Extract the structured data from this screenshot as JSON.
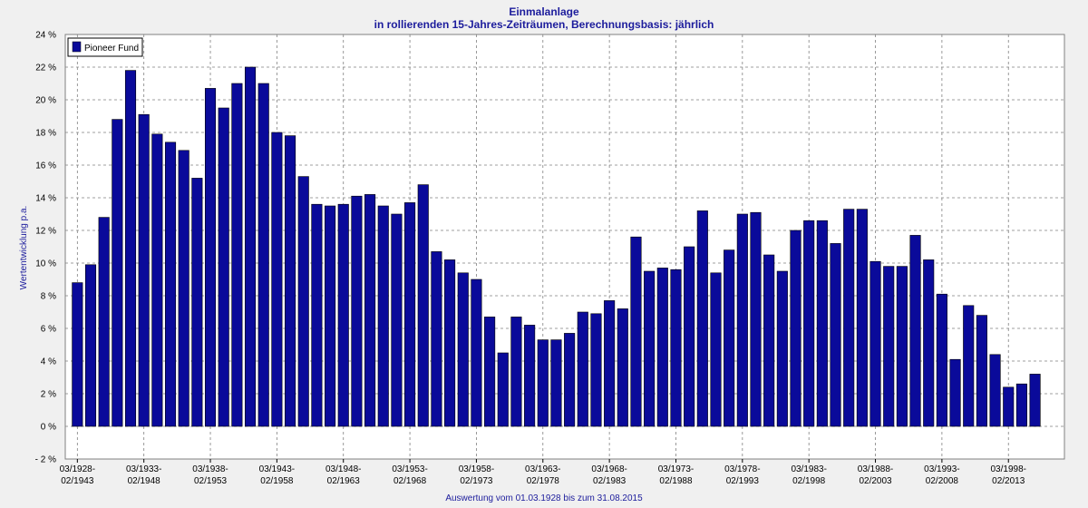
{
  "chart_data": {
    "type": "bar",
    "title": "Einmalanlage",
    "subtitle": "in rollierenden 15-Jahres-Zeiträumen, Berechnungsbasis: jährlich",
    "ylabel": "Wertentwicklung p.a.",
    "footer": "Auswertung vom 01.03.1928 bis zum 31.08.2015",
    "ylim": [
      -2,
      24
    ],
    "yticks": [
      -2,
      0,
      2,
      4,
      6,
      8,
      10,
      12,
      14,
      16,
      18,
      20,
      22,
      24
    ],
    "ytick_labels": [
      "- 2 %",
      "0 %",
      "2 %",
      "4 %",
      "6 %",
      "8 %",
      "10 %",
      "12 %",
      "14 %",
      "16 %",
      "18 %",
      "20 %",
      "22 %",
      "24 %"
    ],
    "grid": true,
    "legend_position": "top-left",
    "bar_color": "#0a0a9a",
    "categories": [
      "03/1928-02/1943",
      "03/1929-02/1944",
      "03/1930-02/1945",
      "03/1931-02/1946",
      "03/1932-02/1947",
      "03/1933-02/1948",
      "03/1934-02/1949",
      "03/1935-02/1950",
      "03/1936-02/1951",
      "03/1937-02/1952",
      "03/1938-02/1953",
      "03/1939-02/1954",
      "03/1940-02/1955",
      "03/1941-02/1956",
      "03/1942-02/1957",
      "03/1943-02/1958",
      "03/1944-02/1959",
      "03/1945-02/1960",
      "03/1946-02/1961",
      "03/1947-02/1962",
      "03/1948-02/1963",
      "03/1949-02/1964",
      "03/1950-02/1965",
      "03/1951-02/1966",
      "03/1952-02/1967",
      "03/1953-02/1968",
      "03/1954-02/1969",
      "03/1955-02/1970",
      "03/1956-02/1971",
      "03/1957-02/1972",
      "03/1958-02/1973",
      "03/1959-02/1974",
      "03/1960-02/1975",
      "03/1961-02/1976",
      "03/1962-02/1977",
      "03/1963-02/1978",
      "03/1964-02/1979",
      "03/1965-02/1980",
      "03/1966-02/1981",
      "03/1967-02/1982",
      "03/1968-02/1983",
      "03/1969-02/1984",
      "03/1970-02/1985",
      "03/1971-02/1986",
      "03/1972-02/1987",
      "03/1973-02/1988",
      "03/1974-02/1989",
      "03/1975-02/1990",
      "03/1976-02/1991",
      "03/1977-02/1992",
      "03/1978-02/1993",
      "03/1979-02/1994",
      "03/1980-02/1995",
      "03/1981-02/1996",
      "03/1982-02/1997",
      "03/1983-02/1998",
      "03/1984-02/1999",
      "03/1985-02/2000",
      "03/1986-02/2001",
      "03/1987-02/2002",
      "03/1988-02/2003",
      "03/1989-02/2004",
      "03/1990-02/2005",
      "03/1991-02/2006",
      "03/1992-02/2007",
      "03/1993-02/2008",
      "03/1994-02/2009",
      "03/1995-02/2010",
      "03/1996-02/2011",
      "03/1997-02/2012",
      "03/1998-02/2013",
      "03/1999-02/2014",
      "03/2000-02/2015"
    ],
    "x_tick_labels": [
      {
        "index": 0,
        "line1": "03/1928-",
        "line2": "02/1943"
      },
      {
        "index": 5,
        "line1": "03/1933-",
        "line2": "02/1948"
      },
      {
        "index": 10,
        "line1": "03/1938-",
        "line2": "02/1953"
      },
      {
        "index": 15,
        "line1": "03/1943-",
        "line2": "02/1958"
      },
      {
        "index": 20,
        "line1": "03/1948-",
        "line2": "02/1963"
      },
      {
        "index": 25,
        "line1": "03/1953-",
        "line2": "02/1968"
      },
      {
        "index": 30,
        "line1": "03/1958-",
        "line2": "02/1973"
      },
      {
        "index": 35,
        "line1": "03/1963-",
        "line2": "02/1978"
      },
      {
        "index": 40,
        "line1": "03/1968-",
        "line2": "02/1983"
      },
      {
        "index": 45,
        "line1": "03/1973-",
        "line2": "02/1988"
      },
      {
        "index": 50,
        "line1": "03/1978-",
        "line2": "02/1993"
      },
      {
        "index": 55,
        "line1": "03/1983-",
        "line2": "02/1998"
      },
      {
        "index": 60,
        "line1": "03/1988-",
        "line2": "02/2003"
      },
      {
        "index": 65,
        "line1": "03/1993-",
        "line2": "02/2008"
      },
      {
        "index": 70,
        "line1": "03/1998-",
        "line2": "02/2013"
      }
    ],
    "series": [
      {
        "name": "Pioneer Fund",
        "values": [
          8.8,
          9.9,
          12.8,
          18.8,
          21.8,
          19.1,
          17.9,
          17.4,
          16.9,
          15.2,
          20.7,
          19.5,
          21.0,
          22.0,
          21.0,
          18.0,
          17.8,
          15.3,
          13.6,
          13.5,
          13.6,
          14.1,
          14.2,
          13.5,
          13.0,
          13.7,
          14.8,
          10.7,
          10.2,
          9.4,
          9.0,
          6.7,
          4.5,
          6.7,
          6.2,
          5.3,
          5.3,
          5.7,
          7.0,
          6.9,
          7.7,
          7.2,
          11.6,
          9.5,
          9.7,
          9.6,
          11.0,
          13.2,
          9.4,
          10.8,
          13.0,
          13.1,
          10.5,
          9.5,
          12.0,
          12.6,
          12.6,
          11.2,
          13.3,
          13.3,
          10.1,
          9.8,
          9.8,
          11.7,
          10.2,
          8.1,
          4.1,
          7.4,
          6.8,
          4.4,
          2.4,
          2.6,
          3.2
        ]
      }
    ]
  }
}
